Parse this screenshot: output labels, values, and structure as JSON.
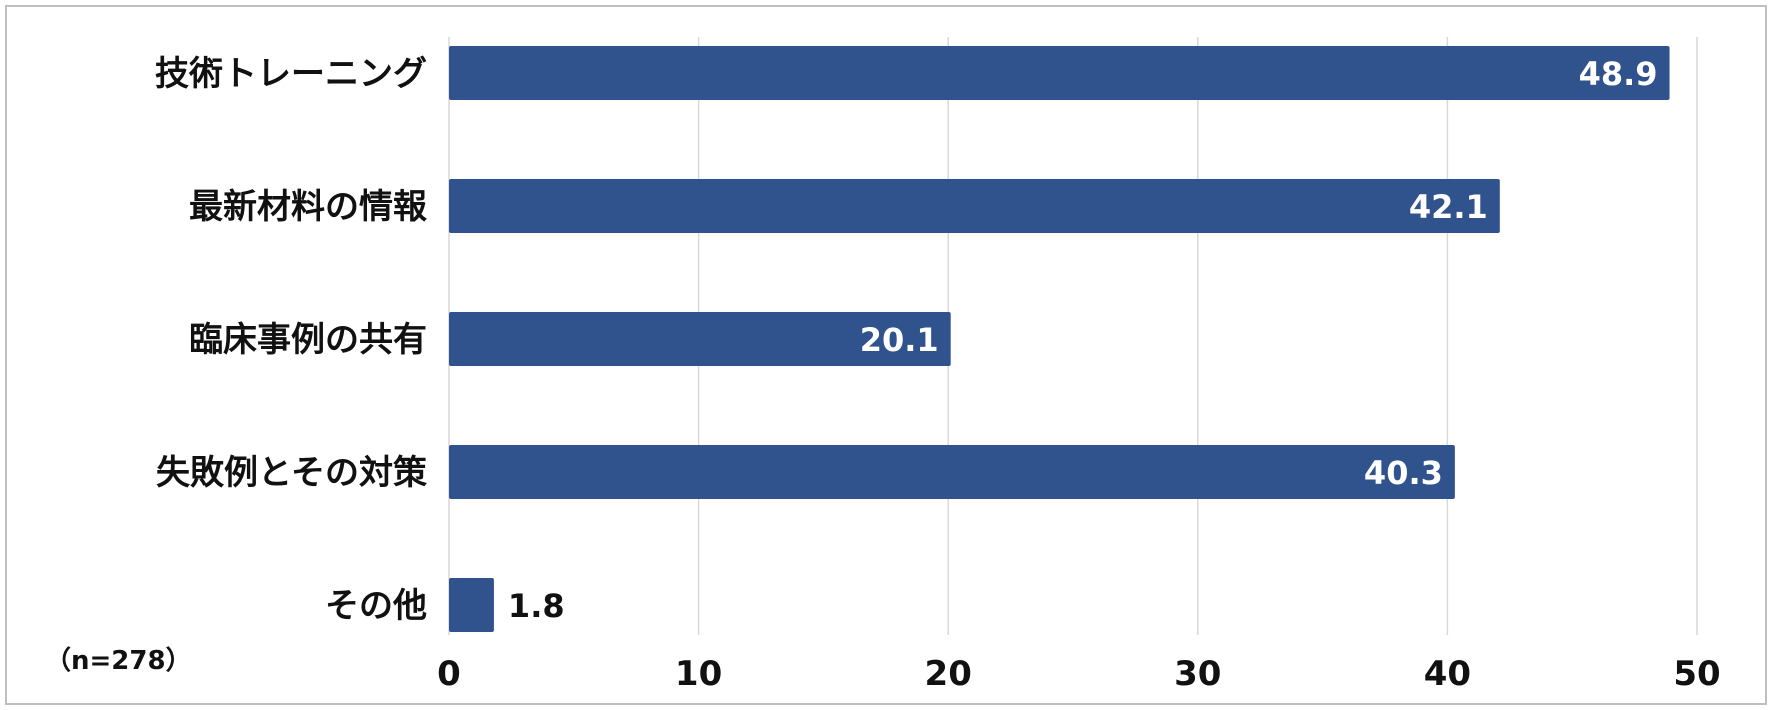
{
  "note": "（n=278）",
  "colors": {
    "bar": "#30538e",
    "grid": "#d9d9d9",
    "frame": "#bfbfbf",
    "text": "#111111"
  },
  "chart_data": {
    "type": "bar",
    "orientation": "horizontal",
    "categories": [
      "技術トレーニング",
      "最新材料の情報",
      "臨床事例の共有",
      "失敗例とその対策",
      "その他"
    ],
    "values": [
      48.9,
      42.1,
      20.1,
      40.3,
      1.8
    ],
    "xlim": [
      0,
      50
    ],
    "xticks": [
      0,
      10,
      20,
      30,
      40,
      50
    ],
    "grid": "vertical",
    "legend": "none"
  }
}
